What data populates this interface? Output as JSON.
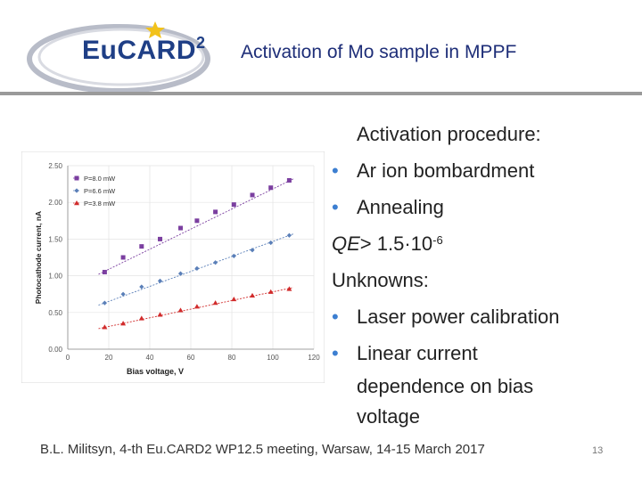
{
  "header": {
    "logo_text": "Eu",
    "logo_text2": "CARD",
    "logo_sup": "2",
    "title": "Activation of Mo sample in MPPF"
  },
  "bullets": {
    "heading": "Activation procedure:",
    "item1": "Ar ion bombardment",
    "item2": "Annealing",
    "qe_label": "QE",
    "qe_value": "> 1.5·10",
    "qe_exp": "-6",
    "unknowns": "Unknowns:",
    "item3": "Laser power calibration",
    "item4_line1": "Linear current",
    "item4_line2": "dependence on bias",
    "item4_line3": "voltage",
    "bullet_glyph": "•"
  },
  "footer": {
    "text": "B.L. Militsyn, 4-th Eu.CARD2 WP12.5 meeting, Warsaw, 14-15 March 2017",
    "page": "13"
  },
  "chart_data": {
    "type": "scatter",
    "xlabel": "Bias voltage, V",
    "ylabel": "Photocathode current, nA",
    "xlim": [
      0,
      120
    ],
    "ylim": [
      0,
      2.5
    ],
    "xticks": [
      "0",
      "20",
      "40",
      "60",
      "80",
      "100",
      "120"
    ],
    "yticks": [
      "0.00",
      "0.50",
      "1.00",
      "1.50",
      "2.00",
      "2.50"
    ],
    "legend_position": "top-left",
    "series": [
      {
        "name": "P=8.0 mW",
        "marker": "square",
        "color": "#7b3fa0",
        "x": [
          18,
          27,
          36,
          45,
          55,
          63,
          72,
          81,
          90,
          99,
          108
        ],
        "y": [
          1.05,
          1.25,
          1.4,
          1.5,
          1.65,
          1.75,
          1.87,
          1.97,
          2.1,
          2.2,
          2.3
        ],
        "fit": [
          [
            15,
            1.02
          ],
          [
            110,
            2.32
          ]
        ]
      },
      {
        "name": "P=6.6 mW",
        "marker": "diamond",
        "color": "#5a7fb8",
        "x": [
          18,
          27,
          36,
          45,
          55,
          63,
          72,
          81,
          90,
          99,
          108
        ],
        "y": [
          0.63,
          0.75,
          0.85,
          0.93,
          1.03,
          1.1,
          1.18,
          1.27,
          1.35,
          1.45,
          1.55
        ],
        "fit": [
          [
            15,
            0.6
          ],
          [
            110,
            1.57
          ]
        ]
      },
      {
        "name": "P=3.8 mW",
        "marker": "triangle",
        "color": "#d12b2b",
        "x": [
          18,
          27,
          36,
          45,
          55,
          63,
          72,
          81,
          90,
          99,
          108
        ],
        "y": [
          0.3,
          0.35,
          0.42,
          0.47,
          0.53,
          0.58,
          0.63,
          0.68,
          0.73,
          0.78,
          0.82
        ],
        "fit": [
          [
            15,
            0.28
          ],
          [
            110,
            0.84
          ]
        ]
      }
    ]
  }
}
